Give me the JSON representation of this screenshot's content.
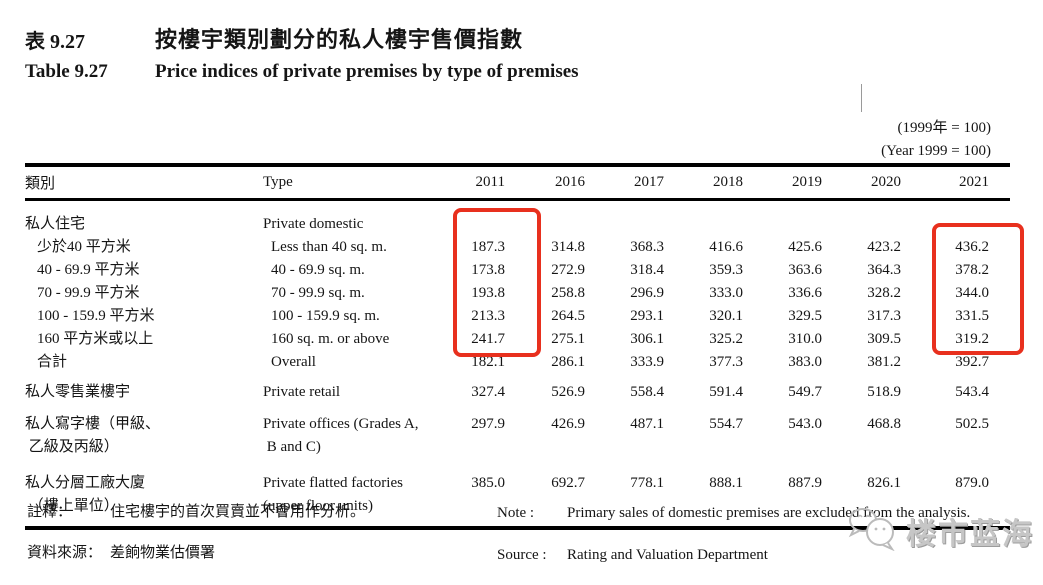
{
  "title": {
    "label_zh": "表 9.27",
    "label_en": "Table 9.27",
    "title_zh": "按樓宇類別劃分的私人樓宇售價指數",
    "title_en": "Price indices of private premises by type of premises"
  },
  "base_note": {
    "zh": "(1999年  =  100)",
    "en": "(Year 1999 = 100)"
  },
  "table": {
    "header": {
      "zh": "類別",
      "en": "Type"
    },
    "columns": [
      "2011",
      "2016",
      "2017",
      "2018",
      "2019",
      "2020",
      "2021"
    ],
    "rows": [
      {
        "zh": [
          "私人住宅"
        ],
        "en": [
          "Private domestic"
        ],
        "indent": 0,
        "values": []
      },
      {
        "zh": [
          "少於40 平方米"
        ],
        "en": [
          "Less than 40 sq. m."
        ],
        "indent": 1,
        "values": [
          "187.3",
          "314.8",
          "368.3",
          "416.6",
          "425.6",
          "423.2",
          "436.2"
        ]
      },
      {
        "zh": [
          "40 - 69.9 平方米"
        ],
        "en": [
          "40 - 69.9 sq. m."
        ],
        "indent": 1,
        "values": [
          "173.8",
          "272.9",
          "318.4",
          "359.3",
          "363.6",
          "364.3",
          "378.2"
        ]
      },
      {
        "zh": [
          "70 - 99.9 平方米"
        ],
        "en": [
          "70 - 99.9 sq. m."
        ],
        "indent": 1,
        "values": [
          "193.8",
          "258.8",
          "296.9",
          "333.0",
          "336.6",
          "328.2",
          "344.0"
        ]
      },
      {
        "zh": [
          "100 - 159.9 平方米"
        ],
        "en": [
          "100 - 159.9 sq. m."
        ],
        "indent": 1,
        "values": [
          "213.3",
          "264.5",
          "293.1",
          "320.1",
          "329.5",
          "317.3",
          "331.5"
        ]
      },
      {
        "zh": [
          "160 平方米或以上"
        ],
        "en": [
          "160 sq. m. or above"
        ],
        "indent": 1,
        "values": [
          "241.7",
          "275.1",
          "306.1",
          "325.2",
          "310.0",
          "309.5",
          "319.2"
        ]
      },
      {
        "zh": [
          "合計"
        ],
        "en": [
          "Overall"
        ],
        "indent": 1,
        "values": [
          "182.1",
          "286.1",
          "333.9",
          "377.3",
          "383.0",
          "381.2",
          "392.7"
        ]
      },
      {
        "zh": [
          "私人零售業樓宇"
        ],
        "en": [
          "Private retail"
        ],
        "indent": 0,
        "gap": 7,
        "values": [
          "327.4",
          "526.9",
          "558.4",
          "591.4",
          "549.7",
          "518.9",
          "543.4"
        ]
      },
      {
        "zh": [
          "私人寫字樓（甲級、",
          " 乙級及丙級）"
        ],
        "en": [
          "Private offices (Grades A,",
          " B and C)"
        ],
        "indent": 0,
        "gap": 8,
        "values": [
          "297.9",
          "426.9",
          "487.1",
          "554.7",
          "543.0",
          "468.8",
          "502.5"
        ]
      },
      {
        "zh": [
          "私人分層工廠大廈",
          " （樓上單位）"
        ],
        "en": [
          "Private flatted factories",
          "(upper floor units)"
        ],
        "indent": 0,
        "gap": 12,
        "values": [
          "385.0",
          "692.7",
          "778.1",
          "888.1",
          "887.9",
          "826.1",
          "879.0"
        ]
      }
    ]
  },
  "annotations": {
    "highlight_color": "#e8301e",
    "highlighted_columns": [
      "2011",
      "2021"
    ]
  },
  "notes": {
    "note_label_zh": "註釋：",
    "note_zh": "住宅樓宇的首次買賣並不會用作分析。",
    "note_label_en": "Note :",
    "note_en": "Primary sales of domestic premises are excluded from the analysis.",
    "source_label_zh": "資料來源：",
    "source_zh": "差餉物業估價署",
    "source_label_en": "Source :",
    "source_en": "Rating and Valuation Department"
  },
  "watermark": {
    "icon": "chat-bubbles-icon",
    "text": "楼市蓝海"
  }
}
